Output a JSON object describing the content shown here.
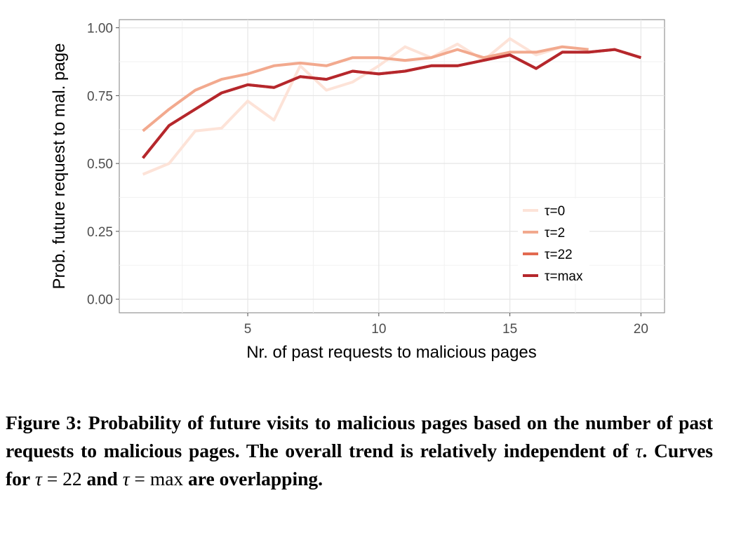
{
  "chart_data": {
    "type": "line",
    "xlabel": "Nr. of past requests to malicious pages",
    "ylabel": "Prob. future request to mal. page",
    "xlim": [
      0.1,
      20.9
    ],
    "ylim": [
      -0.05,
      1.03
    ],
    "x_ticks": [
      5,
      10,
      15,
      20
    ],
    "y_ticks": [
      0.0,
      0.25,
      0.5,
      0.75,
      1.0
    ],
    "x_tick_labels": [
      "5",
      "10",
      "15",
      "20"
    ],
    "y_tick_labels": [
      "0.00",
      "0.25",
      "0.50",
      "0.75",
      "1.00"
    ],
    "grid": true,
    "legend_position": "bottom-right",
    "series": [
      {
        "name": "τ=0",
        "color": "#fde3d8",
        "x": [
          1,
          2,
          3,
          4,
          5,
          6,
          7,
          8,
          9,
          10,
          11,
          12,
          13,
          14,
          15,
          16,
          17
        ],
        "y": [
          0.46,
          0.5,
          0.62,
          0.63,
          0.73,
          0.66,
          0.86,
          0.77,
          0.8,
          0.86,
          0.93,
          0.89,
          0.94,
          0.88,
          0.96,
          0.9,
          0.93
        ]
      },
      {
        "name": "τ=2",
        "color": "#f2a98e",
        "x": [
          1,
          2,
          3,
          4,
          5,
          6,
          7,
          8,
          9,
          10,
          11,
          12,
          13,
          14,
          15,
          16,
          17,
          18
        ],
        "y": [
          0.62,
          0.7,
          0.77,
          0.81,
          0.83,
          0.86,
          0.87,
          0.86,
          0.89,
          0.89,
          0.88,
          0.89,
          0.92,
          0.89,
          0.91,
          0.91,
          0.93,
          0.92
        ]
      },
      {
        "name": "τ=22",
        "color": "#e26a50",
        "x": [
          1,
          2,
          3,
          4,
          5,
          6,
          7,
          8,
          9,
          10,
          11,
          12,
          13,
          14,
          15,
          16,
          17,
          18,
          19,
          20
        ],
        "y": [
          0.52,
          0.64,
          0.7,
          0.76,
          0.79,
          0.78,
          0.82,
          0.81,
          0.84,
          0.83,
          0.84,
          0.86,
          0.86,
          0.88,
          0.9,
          0.85,
          0.91,
          0.91,
          0.92,
          0.89
        ]
      },
      {
        "name": "τ=max",
        "color": "#b5272c",
        "x": [
          1,
          2,
          3,
          4,
          5,
          6,
          7,
          8,
          9,
          10,
          11,
          12,
          13,
          14,
          15,
          16,
          17,
          18,
          19,
          20
        ],
        "y": [
          0.52,
          0.64,
          0.7,
          0.76,
          0.79,
          0.78,
          0.82,
          0.81,
          0.84,
          0.83,
          0.84,
          0.86,
          0.86,
          0.88,
          0.9,
          0.85,
          0.91,
          0.91,
          0.92,
          0.89
        ]
      }
    ]
  },
  "caption": {
    "label": "Figure 3:",
    "text_part1": "Probability of future visits to malicious pages based on the number of past requests to malicious pages. The overall trend is relatively independent of",
    "tau": "τ",
    "text_part2": ". Curves for",
    "eq1_lhs": "τ",
    "eq1_op": "=",
    "eq1_rhs": "22",
    "and": "and",
    "eq2_lhs": "τ",
    "eq2_op": "=",
    "eq2_rhs": "max",
    "text_part3": "are overlapping."
  }
}
